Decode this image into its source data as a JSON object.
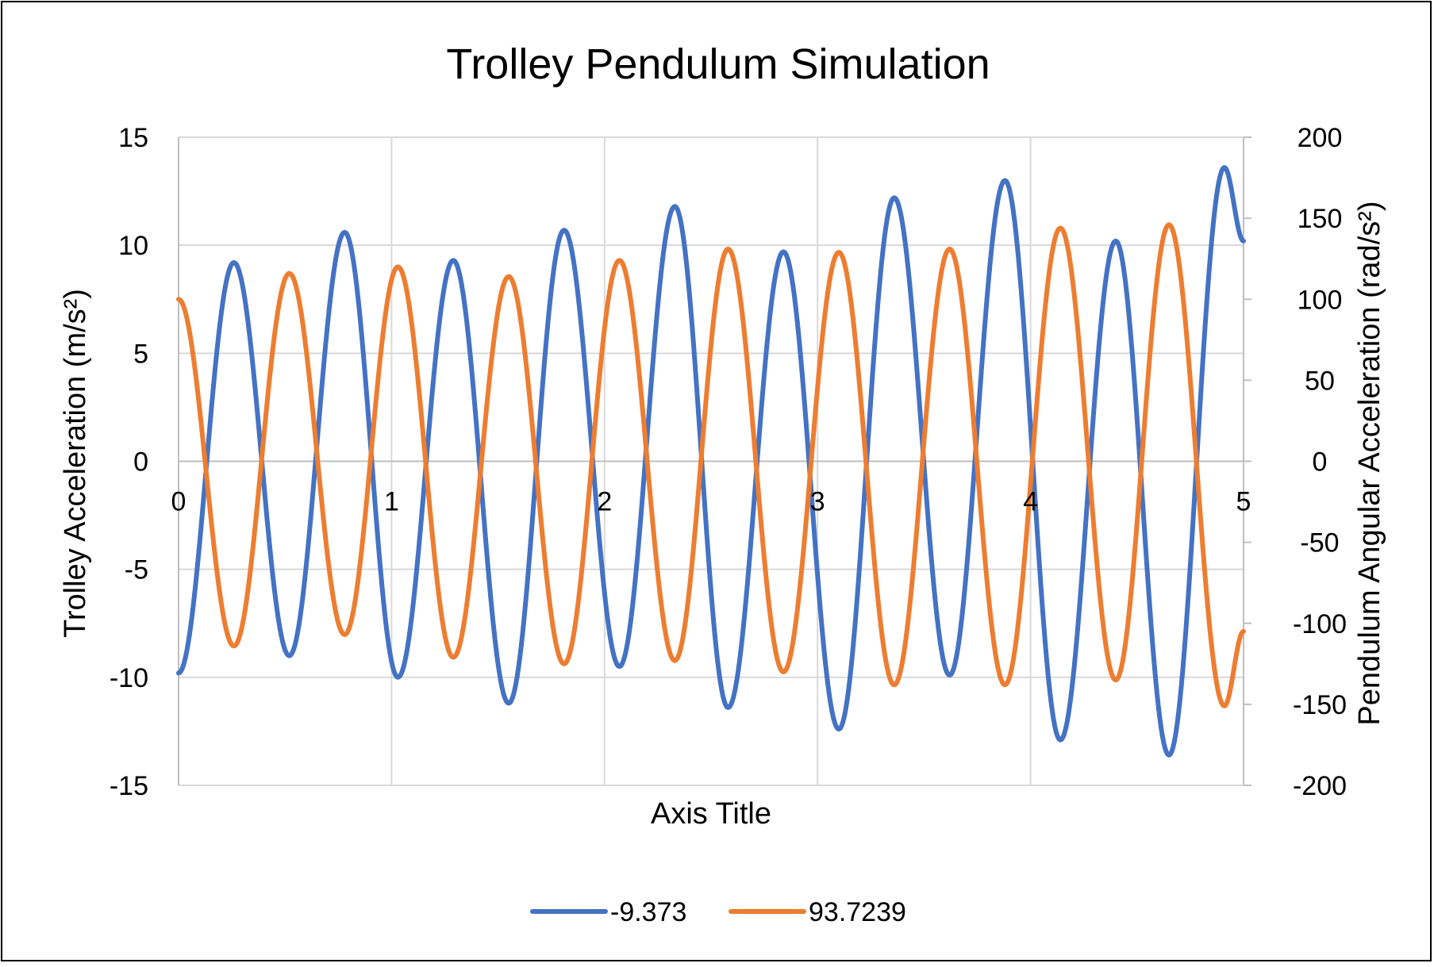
{
  "chart_data": {
    "type": "line",
    "title": "Trolley Pendulum Simulation",
    "xlabel": "Axis Title",
    "ylabel": "Trolley Acceleration (m/s²)",
    "y2label": "Pendulum Angular Acceleration (rad/s²)",
    "xlim": [
      0,
      5
    ],
    "ylim": [
      -15,
      15
    ],
    "y2lim": [
      -200,
      200
    ],
    "x_ticks": [
      "0",
      "1",
      "2",
      "3",
      "4",
      "5"
    ],
    "y_ticks": [
      "-15",
      "-10",
      "-5",
      "0",
      "5",
      "10",
      "15"
    ],
    "y2_ticks": [
      "-200",
      "-150",
      "-100",
      "-50",
      "0",
      "50",
      "100",
      "150",
      "200"
    ],
    "grid": true,
    "legend_position": "bottom",
    "series": [
      {
        "name": "-9.373",
        "axis": "left",
        "color": "#4472C4",
        "points": [
          [
            0.0,
            -9.8
          ],
          [
            0.26,
            9.2
          ],
          [
            0.52,
            -9.0
          ],
          [
            0.78,
            10.6
          ],
          [
            1.03,
            -10.0
          ],
          [
            1.29,
            9.3
          ],
          [
            1.55,
            -11.2
          ],
          [
            1.81,
            10.7
          ],
          [
            2.07,
            -9.5
          ],
          [
            2.33,
            11.8
          ],
          [
            2.58,
            -11.4
          ],
          [
            2.84,
            9.7
          ],
          [
            3.1,
            -12.4
          ],
          [
            3.36,
            12.2
          ],
          [
            3.62,
            -9.9
          ],
          [
            3.88,
            13.0
          ],
          [
            4.14,
            -12.9
          ],
          [
            4.4,
            10.2
          ],
          [
            4.65,
            -13.6
          ],
          [
            4.91,
            13.6
          ],
          [
            5.0,
            10.2
          ]
        ]
      },
      {
        "name": "93.7239",
        "axis": "right",
        "color": "#ED7D31",
        "points": [
          [
            0.0,
            100
          ],
          [
            0.26,
            -114
          ],
          [
            0.52,
            116
          ],
          [
            0.78,
            -107
          ],
          [
            1.03,
            120
          ],
          [
            1.29,
            -121
          ],
          [
            1.55,
            114
          ],
          [
            1.81,
            -125
          ],
          [
            2.07,
            124
          ],
          [
            2.33,
            -123
          ],
          [
            2.58,
            131
          ],
          [
            2.84,
            -130
          ],
          [
            3.1,
            129
          ],
          [
            3.36,
            -138
          ],
          [
            3.62,
            131
          ],
          [
            3.88,
            -138
          ],
          [
            4.14,
            144
          ],
          [
            4.4,
            -135
          ],
          [
            4.65,
            146
          ],
          [
            4.91,
            -151
          ],
          [
            5.0,
            -105
          ]
        ]
      }
    ]
  }
}
